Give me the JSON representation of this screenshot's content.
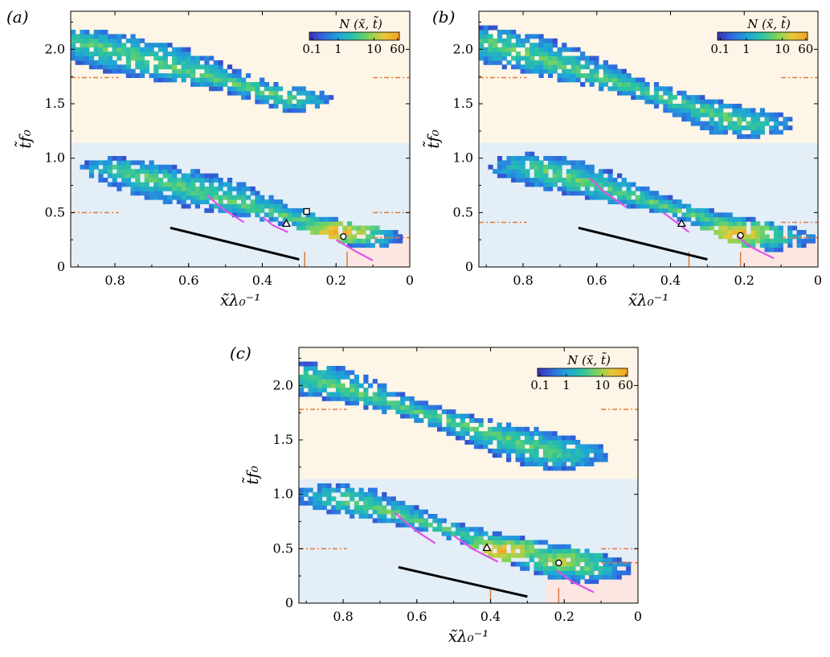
{
  "figure": {
    "panels": [
      "(a)",
      "(b)",
      "(c)"
    ],
    "xlabel": "x̃λ₀⁻¹",
    "ylabel": "t̃f₀",
    "colorbar": {
      "label": "N (x̃, t̃)",
      "ticks": [
        "0.1",
        "1",
        "10",
        "60"
      ],
      "colors": [
        "#3b33b8",
        "#2e6fe0",
        "#1fa6d6",
        "#2dc4a0",
        "#7fd45a",
        "#e6c93a",
        "#f5a623"
      ]
    },
    "colors": {
      "upper_region": "#fdf5e6",
      "lower_region": "#e3eef7",
      "corner_region": "#fbe6e2",
      "reference_line": "#000000",
      "magenta_curve": "#e052e8",
      "orange_marker": "#e07a3c"
    }
  },
  "chart_data": [
    {
      "panel": "(a)",
      "type": "heatmap",
      "xlim": [
        0.92,
        0
      ],
      "ylim": [
        0,
        2.35
      ],
      "x_ticks": [
        "0.8",
        "0.6",
        "0.4",
        "0.2",
        "0"
      ],
      "y_ticks": [
        "0",
        "0.5",
        "1.0",
        "1.5",
        "2.0"
      ],
      "region_boundary_y": 1.14,
      "bands": [
        {
          "x": [
            0.9,
            0.32
          ],
          "y": [
            2.05,
            1.52
          ],
          "width": 0.25
        },
        {
          "x": [
            0.8,
            0.12
          ],
          "y": [
            0.88,
            0.25
          ],
          "width": 0.22
        }
      ],
      "peaks": [
        {
          "x": 0.2,
          "y": 0.3,
          "level": 1.0
        }
      ],
      "reference_line": {
        "x": [
          0.65,
          0.3
        ],
        "y": [
          0.36,
          0.07
        ]
      },
      "magenta_curves": [
        [
          [
            0.55,
            0.66
          ],
          [
            0.51,
            0.54
          ],
          [
            0.45,
            0.41
          ]
        ],
        [
          [
            0.4,
            0.46
          ],
          [
            0.37,
            0.38
          ],
          [
            0.33,
            0.32
          ]
        ],
        [
          [
            0.2,
            0.25
          ],
          [
            0.15,
            0.15
          ],
          [
            0.1,
            0.06
          ]
        ]
      ],
      "markers": [
        {
          "shape": "triangle",
          "x": 0.335,
          "y": 0.4
        },
        {
          "shape": "square",
          "x": 0.28,
          "y": 0.51
        },
        {
          "shape": "circle",
          "x": 0.18,
          "y": 0.28
        }
      ],
      "vertical_marks": [
        0.285,
        0.17
      ],
      "orange_hlines": [
        [
          0.92,
          0.79,
          1.74
        ],
        [
          0.92,
          0.79,
          0.5
        ],
        [
          0.1,
          0.0,
          1.74
        ],
        [
          0.1,
          0.0,
          0.5
        ],
        [
          0.1,
          0.0,
          0.27
        ]
      ],
      "corner_region": {
        "x": [
          0.17,
          0
        ],
        "y": [
          0,
          0.3
        ]
      }
    },
    {
      "panel": "(b)",
      "type": "heatmap",
      "xlim": [
        0.92,
        0
      ],
      "ylim": [
        0,
        2.35
      ],
      "x_ticks": [
        "0.8",
        "0.6",
        "0.4",
        "0.2",
        "0"
      ],
      "y_ticks": [
        "0",
        "0.5",
        "1.0",
        "1.5",
        "2.0"
      ],
      "region_boundary_y": 1.14,
      "bands": [
        {
          "x": [
            0.9,
            0.2
          ],
          "y": [
            2.05,
            1.3
          ],
          "width": 0.22
        },
        {
          "x": [
            0.78,
            0.13
          ],
          "y": [
            0.9,
            0.25
          ],
          "width": 0.2
        }
      ],
      "peaks": [
        {
          "x": 0.22,
          "y": 0.29,
          "level": 1.0
        }
      ],
      "reference_line": {
        "x": [
          0.65,
          0.3
        ],
        "y": [
          0.36,
          0.07
        ]
      },
      "magenta_curves": [
        [
          [
            0.62,
            0.82
          ],
          [
            0.58,
            0.69
          ],
          [
            0.52,
            0.55
          ]
        ],
        [
          [
            0.42,
            0.5
          ],
          [
            0.38,
            0.4
          ],
          [
            0.35,
            0.32
          ]
        ],
        [
          [
            0.22,
            0.28
          ],
          [
            0.18,
            0.18
          ],
          [
            0.12,
            0.08
          ]
        ]
      ],
      "markers": [
        {
          "shape": "triangle",
          "x": 0.37,
          "y": 0.4
        },
        {
          "shape": "circle",
          "x": 0.21,
          "y": 0.29
        }
      ],
      "vertical_marks": [
        0.35,
        0.21
      ],
      "orange_hlines": [
        [
          0.92,
          0.79,
          1.74
        ],
        [
          0.92,
          0.79,
          0.41
        ],
        [
          0.1,
          0.0,
          1.74
        ],
        [
          0.1,
          0.0,
          0.41
        ],
        [
          0.1,
          0.0,
          0.27
        ]
      ],
      "corner_region": {
        "x": [
          0.21,
          0
        ],
        "y": [
          0,
          0.3
        ]
      }
    },
    {
      "panel": "(c)",
      "type": "heatmap",
      "xlim": [
        0.92,
        0
      ],
      "ylim": [
        0,
        2.35
      ],
      "x_ticks": [
        "0.8",
        "0.6",
        "0.4",
        "0.2",
        "0"
      ],
      "y_ticks": [
        "0",
        "0.5",
        "1.0",
        "1.5",
        "2.0"
      ],
      "region_boundary_y": 1.14,
      "bands": [
        {
          "x": [
            0.9,
            0.22
          ],
          "y": [
            2.05,
            1.35
          ],
          "width": 0.22
        },
        {
          "x": [
            0.82,
            0.15
          ],
          "y": [
            0.95,
            0.3
          ],
          "width": 0.2
        }
      ],
      "peaks": [
        {
          "x": 0.38,
          "y": 0.46,
          "level": 1.0
        },
        {
          "x": 0.21,
          "y": 0.37,
          "level": 0.8
        }
      ],
      "reference_line": {
        "x": [
          0.65,
          0.3
        ],
        "y": [
          0.33,
          0.06
        ]
      },
      "magenta_curves": [
        [
          [
            0.66,
            0.83
          ],
          [
            0.6,
            0.66
          ],
          [
            0.55,
            0.55
          ]
        ],
        [
          [
            0.5,
            0.62
          ],
          [
            0.45,
            0.5
          ],
          [
            0.38,
            0.38
          ]
        ],
        [
          [
            0.22,
            0.3
          ],
          [
            0.18,
            0.2
          ],
          [
            0.12,
            0.1
          ]
        ]
      ],
      "markers": [
        {
          "shape": "triangle",
          "x": 0.41,
          "y": 0.51
        },
        {
          "shape": "circle",
          "x": 0.215,
          "y": 0.37
        }
      ],
      "vertical_marks": [
        0.4,
        0.215
      ],
      "orange_hlines": [
        [
          0.92,
          0.79,
          1.78
        ],
        [
          0.92,
          0.79,
          0.5
        ],
        [
          0.1,
          0.0,
          1.78
        ],
        [
          0.1,
          0.0,
          0.5
        ],
        [
          0.1,
          0.0,
          0.37
        ]
      ],
      "corner_region": {
        "x": [
          0.25,
          0
        ],
        "y": [
          0,
          0.4
        ]
      }
    }
  ]
}
